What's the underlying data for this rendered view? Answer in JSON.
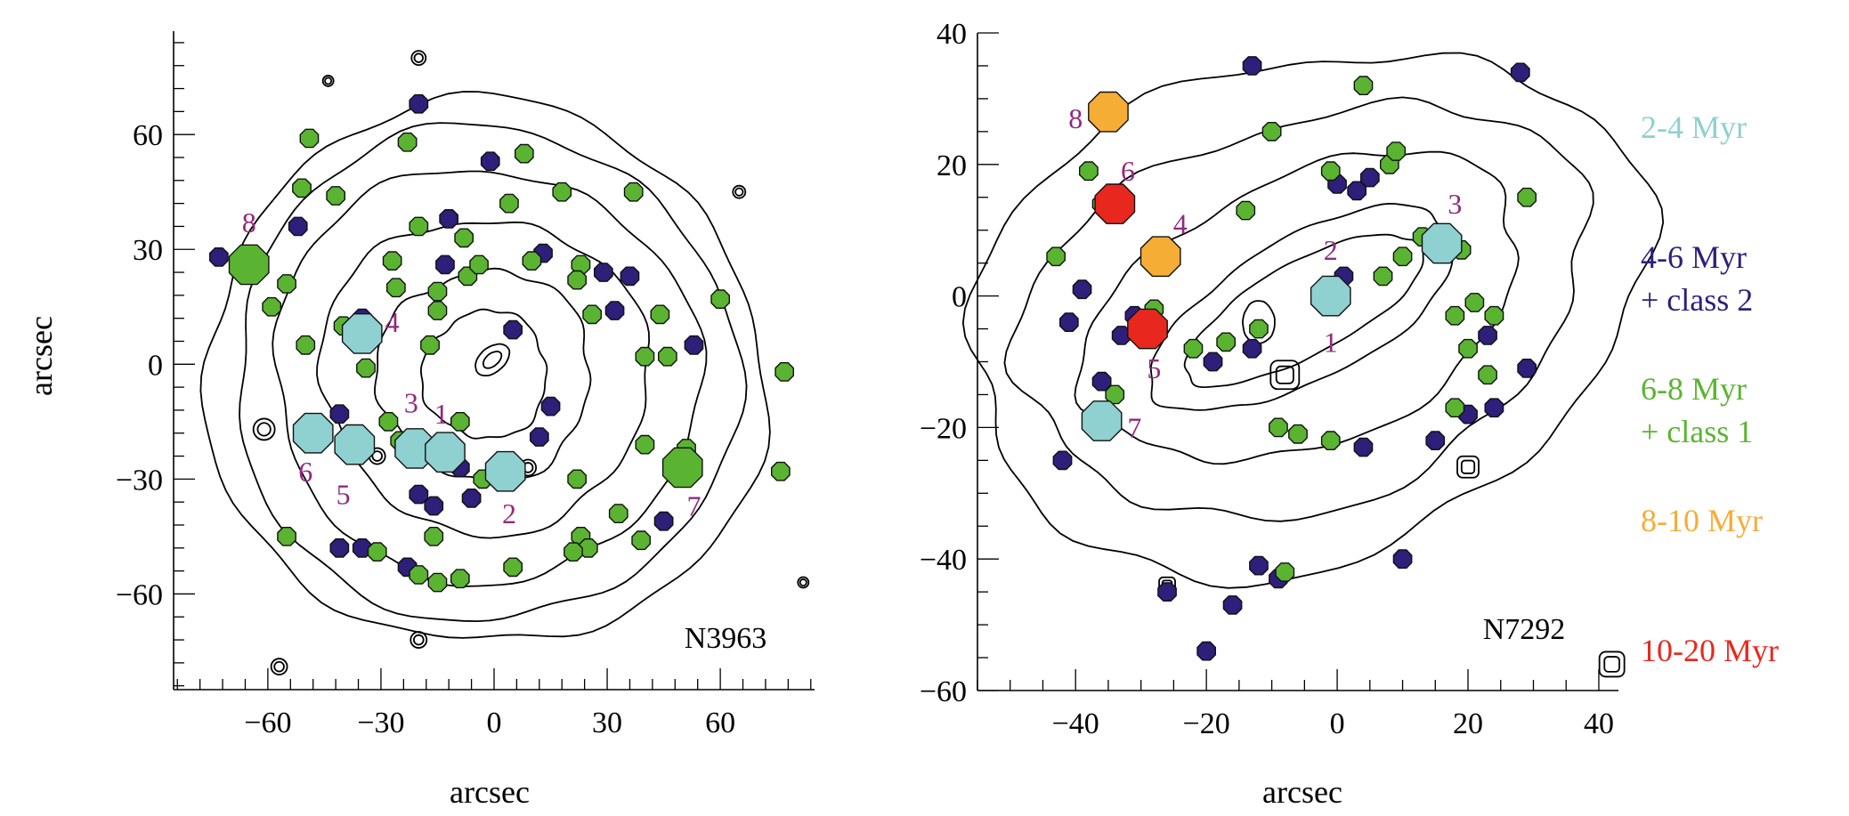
{
  "colors": {
    "cyan": "#8fd0d0",
    "purple": "#2e1f7a",
    "green": "#5ab431",
    "orange": "#f6ad35",
    "red": "#e8281f",
    "magenta": "#932a7e"
  },
  "chart_data": [
    {
      "type": "scatter",
      "panel": "N3963",
      "label": "N3963",
      "xlabel": "arcsec",
      "ylabel": "arcsec",
      "xlim": [
        -85,
        85
      ],
      "ylim": [
        -85,
        87
      ],
      "xticks": [
        -60,
        -30,
        0,
        30,
        60
      ],
      "yticks": [
        -60,
        -30,
        0,
        30,
        60
      ],
      "grid": false,
      "contour_levels": 6,
      "clusters": [
        {
          "age": "cyan",
          "x": -48,
          "y": -18,
          "big": true
        },
        {
          "age": "cyan",
          "x": -37,
          "y": -21,
          "big": true
        },
        {
          "age": "cyan",
          "x": -21,
          "y": -22,
          "big": true
        },
        {
          "age": "cyan",
          "x": -13,
          "y": -23,
          "big": true
        },
        {
          "age": "cyan",
          "x": 3,
          "y": -28,
          "big": true
        },
        {
          "age": "cyan",
          "x": -35,
          "y": 8,
          "big": true
        },
        {
          "age": "green",
          "x": -65,
          "y": 26,
          "big": true
        },
        {
          "age": "green",
          "x": 50,
          "y": -27,
          "big": true
        },
        {
          "age": "purple",
          "x": -73,
          "y": 28
        },
        {
          "age": "purple",
          "x": -52,
          "y": 36
        },
        {
          "age": "purple",
          "x": -20,
          "y": 68
        },
        {
          "age": "purple",
          "x": -12,
          "y": 38
        },
        {
          "age": "purple",
          "x": -1,
          "y": 53
        },
        {
          "age": "purple",
          "x": -13,
          "y": 26
        },
        {
          "age": "purple",
          "x": 13,
          "y": 29
        },
        {
          "age": "purple",
          "x": 29,
          "y": 24
        },
        {
          "age": "purple",
          "x": 36,
          "y": 23
        },
        {
          "age": "purple",
          "x": 32,
          "y": 14
        },
        {
          "age": "purple",
          "x": 5,
          "y": 9
        },
        {
          "age": "purple",
          "x": -35,
          "y": 12
        },
        {
          "age": "purple",
          "x": -50,
          "y": -17
        },
        {
          "age": "purple",
          "x": -41,
          "y": -13
        },
        {
          "age": "purple",
          "x": -20,
          "y": -34
        },
        {
          "age": "purple",
          "x": -16,
          "y": -37
        },
        {
          "age": "purple",
          "x": -6,
          "y": -35
        },
        {
          "age": "purple",
          "x": 12,
          "y": -19
        },
        {
          "age": "purple",
          "x": 15,
          "y": -11
        },
        {
          "age": "purple",
          "x": 53,
          "y": 5
        },
        {
          "age": "purple",
          "x": 45,
          "y": -41
        },
        {
          "age": "purple",
          "x": -41,
          "y": -48
        },
        {
          "age": "purple",
          "x": -35,
          "y": -48
        },
        {
          "age": "purple",
          "x": -23,
          "y": -53
        },
        {
          "age": "purple",
          "x": -9,
          "y": -27
        },
        {
          "age": "green",
          "x": -49,
          "y": 59
        },
        {
          "age": "green",
          "x": -51,
          "y": 46
        },
        {
          "age": "green",
          "x": -42,
          "y": 44
        },
        {
          "age": "green",
          "x": -23,
          "y": 58
        },
        {
          "age": "green",
          "x": 8,
          "y": 55
        },
        {
          "age": "green",
          "x": 18,
          "y": 45
        },
        {
          "age": "green",
          "x": 37,
          "y": 45
        },
        {
          "age": "green",
          "x": -55,
          "y": 21
        },
        {
          "age": "green",
          "x": -59,
          "y": 15
        },
        {
          "age": "green",
          "x": -50,
          "y": 5
        },
        {
          "age": "green",
          "x": -40,
          "y": 10
        },
        {
          "age": "green",
          "x": -34,
          "y": -1
        },
        {
          "age": "green",
          "x": -27,
          "y": 27
        },
        {
          "age": "green",
          "x": -26,
          "y": 20
        },
        {
          "age": "green",
          "x": -20,
          "y": 36
        },
        {
          "age": "green",
          "x": -15,
          "y": 19
        },
        {
          "age": "green",
          "x": -15,
          "y": 14
        },
        {
          "age": "green",
          "x": -17,
          "y": 5
        },
        {
          "age": "green",
          "x": -7,
          "y": 23
        },
        {
          "age": "green",
          "x": -4,
          "y": 26
        },
        {
          "age": "green",
          "x": -8,
          "y": 33
        },
        {
          "age": "green",
          "x": 4,
          "y": 42
        },
        {
          "age": "green",
          "x": 10,
          "y": 27
        },
        {
          "age": "green",
          "x": 23,
          "y": 26
        },
        {
          "age": "green",
          "x": 22,
          "y": 22
        },
        {
          "age": "green",
          "x": 26,
          "y": 13
        },
        {
          "age": "green",
          "x": 44,
          "y": 13
        },
        {
          "age": "green",
          "x": 60,
          "y": 17
        },
        {
          "age": "green",
          "x": 40,
          "y": 2
        },
        {
          "age": "green",
          "x": 46,
          "y": 2
        },
        {
          "age": "green",
          "x": 77,
          "y": -2
        },
        {
          "age": "green",
          "x": 76,
          "y": -28
        },
        {
          "age": "green",
          "x": 40,
          "y": -21
        },
        {
          "age": "green",
          "x": 51,
          "y": -22
        },
        {
          "age": "green",
          "x": -9,
          "y": -15
        },
        {
          "age": "green",
          "x": -28,
          "y": -15
        },
        {
          "age": "green",
          "x": -25,
          "y": -20
        },
        {
          "age": "green",
          "x": -3,
          "y": -30
        },
        {
          "age": "green",
          "x": 22,
          "y": -30
        },
        {
          "age": "green",
          "x": -16,
          "y": -45
        },
        {
          "age": "green",
          "x": -55,
          "y": -45
        },
        {
          "age": "green",
          "x": -31,
          "y": -49
        },
        {
          "age": "green",
          "x": -20,
          "y": -55
        },
        {
          "age": "green",
          "x": -15,
          "y": -57
        },
        {
          "age": "green",
          "x": -9,
          "y": -56
        },
        {
          "age": "green",
          "x": 5,
          "y": -53
        },
        {
          "age": "green",
          "x": 23,
          "y": -45
        },
        {
          "age": "green",
          "x": 25,
          "y": -48
        },
        {
          "age": "green",
          "x": 21,
          "y": -49
        },
        {
          "age": "green",
          "x": 33,
          "y": -39
        },
        {
          "age": "green",
          "x": 39,
          "y": -46
        }
      ],
      "labels": [
        {
          "text": "1",
          "x": -14,
          "y": -13
        },
        {
          "text": "2",
          "x": 4,
          "y": -39
        },
        {
          "text": "3",
          "x": -22,
          "y": -10
        },
        {
          "text": "4",
          "x": -27,
          "y": 11
        },
        {
          "text": "5",
          "x": -40,
          "y": -34
        },
        {
          "text": "6",
          "x": -50,
          "y": -28
        },
        {
          "text": "7",
          "x": 53,
          "y": -37
        },
        {
          "text": "8",
          "x": -65,
          "y": 37
        }
      ]
    },
    {
      "type": "scatter",
      "panel": "N7292",
      "label": "N7292",
      "xlabel": "arcsec",
      "ylabel": "",
      "xlim": [
        -55,
        43
      ],
      "ylim": [
        -60,
        40
      ],
      "xticks": [
        -40,
        -20,
        0,
        20,
        40
      ],
      "yticks": [
        -60,
        -40,
        -20,
        0,
        20,
        40
      ],
      "grid": false,
      "contour_levels": 5,
      "clusters": [
        {
          "age": "cyan",
          "x": -1,
          "y": 0,
          "big": true
        },
        {
          "age": "cyan",
          "x": 16,
          "y": 8,
          "big": true
        },
        {
          "age": "cyan",
          "x": -36,
          "y": -19,
          "big": true
        },
        {
          "age": "orange",
          "x": -35,
          "y": 28,
          "big": true
        },
        {
          "age": "orange",
          "x": -27,
          "y": 6,
          "big": true
        },
        {
          "age": "red",
          "x": -34,
          "y": 14,
          "big": true
        },
        {
          "age": "red",
          "x": -29,
          "y": -5,
          "big": true
        },
        {
          "age": "purple",
          "x": -13,
          "y": 35
        },
        {
          "age": "purple",
          "x": 28,
          "y": 34
        },
        {
          "age": "purple",
          "x": -39,
          "y": 1
        },
        {
          "age": "purple",
          "x": -41,
          "y": -4
        },
        {
          "age": "purple",
          "x": -31,
          "y": -3
        },
        {
          "age": "purple",
          "x": -33,
          "y": -6
        },
        {
          "age": "purple",
          "x": -36,
          "y": -13
        },
        {
          "age": "purple",
          "x": -19,
          "y": -10
        },
        {
          "age": "purple",
          "x": -13,
          "y": -8
        },
        {
          "age": "purple",
          "x": 1,
          "y": 3
        },
        {
          "age": "purple",
          "x": 0,
          "y": 17
        },
        {
          "age": "purple",
          "x": 3,
          "y": 16
        },
        {
          "age": "purple",
          "x": 5,
          "y": 18
        },
        {
          "age": "purple",
          "x": 23,
          "y": -6
        },
        {
          "age": "purple",
          "x": 29,
          "y": -11
        },
        {
          "age": "purple",
          "x": 20,
          "y": -18
        },
        {
          "age": "purple",
          "x": 24,
          "y": -17
        },
        {
          "age": "purple",
          "x": 15,
          "y": -22
        },
        {
          "age": "purple",
          "x": 4,
          "y": -23
        },
        {
          "age": "purple",
          "x": -42,
          "y": -25
        },
        {
          "age": "purple",
          "x": -12,
          "y": -41
        },
        {
          "age": "purple",
          "x": -9,
          "y": -43
        },
        {
          "age": "purple",
          "x": -16,
          "y": -47
        },
        {
          "age": "purple",
          "x": -26,
          "y": -45
        },
        {
          "age": "purple",
          "x": -20,
          "y": -54
        },
        {
          "age": "purple",
          "x": 10,
          "y": -40
        },
        {
          "age": "green",
          "x": -38,
          "y": 19
        },
        {
          "age": "green",
          "x": -36,
          "y": 14
        },
        {
          "age": "green",
          "x": -43,
          "y": 6
        },
        {
          "age": "green",
          "x": -10,
          "y": 25
        },
        {
          "age": "green",
          "x": -14,
          "y": 13
        },
        {
          "age": "green",
          "x": -1,
          "y": 19
        },
        {
          "age": "green",
          "x": 4,
          "y": 32
        },
        {
          "age": "green",
          "x": 8,
          "y": 20
        },
        {
          "age": "green",
          "x": 9,
          "y": 22
        },
        {
          "age": "green",
          "x": 29,
          "y": 15
        },
        {
          "age": "green",
          "x": 13,
          "y": 9
        },
        {
          "age": "green",
          "x": 15,
          "y": 9
        },
        {
          "age": "green",
          "x": 19,
          "y": 7
        },
        {
          "age": "green",
          "x": 10,
          "y": 6
        },
        {
          "age": "green",
          "x": 7,
          "y": 3
        },
        {
          "age": "green",
          "x": -12,
          "y": -5
        },
        {
          "age": "green",
          "x": -22,
          "y": -8
        },
        {
          "age": "green",
          "x": -28,
          "y": -2
        },
        {
          "age": "green",
          "x": -17,
          "y": -7
        },
        {
          "age": "green",
          "x": 18,
          "y": -3
        },
        {
          "age": "green",
          "x": 21,
          "y": -1
        },
        {
          "age": "green",
          "x": 24,
          "y": -3
        },
        {
          "age": "green",
          "x": 20,
          "y": -8
        },
        {
          "age": "green",
          "x": 23,
          "y": -12
        },
        {
          "age": "green",
          "x": 18,
          "y": -17
        },
        {
          "age": "green",
          "x": -34,
          "y": -15
        },
        {
          "age": "green",
          "x": -9,
          "y": -20
        },
        {
          "age": "green",
          "x": -6,
          "y": -21
        },
        {
          "age": "green",
          "x": -1,
          "y": -22
        },
        {
          "age": "green",
          "x": -8,
          "y": -42
        }
      ],
      "labels": [
        {
          "text": "1",
          "x": -1,
          "y": -7
        },
        {
          "text": "2",
          "x": -1,
          "y": 7
        },
        {
          "text": "3",
          "x": 18,
          "y": 14
        },
        {
          "text": "4",
          "x": -24,
          "y": 11
        },
        {
          "text": "5",
          "x": -28,
          "y": -11
        },
        {
          "text": "6",
          "x": -32,
          "y": 19
        },
        {
          "text": "7",
          "x": -31,
          "y": -20
        },
        {
          "text": "8",
          "x": -40,
          "y": 27
        }
      ]
    }
  ],
  "legend": [
    {
      "lines": [
        "2-4 Myr"
      ],
      "color": "cyan"
    },
    {
      "lines": [
        "4-6 Myr",
        "+ class 2"
      ],
      "color": "purple"
    },
    {
      "lines": [
        "6-8 Myr",
        "+ class 1"
      ],
      "color": "green"
    },
    {
      "lines": [
        "8-10 Myr"
      ],
      "color": "orange"
    },
    {
      "lines": [
        "10-20 Myr"
      ],
      "color": "red"
    }
  ]
}
